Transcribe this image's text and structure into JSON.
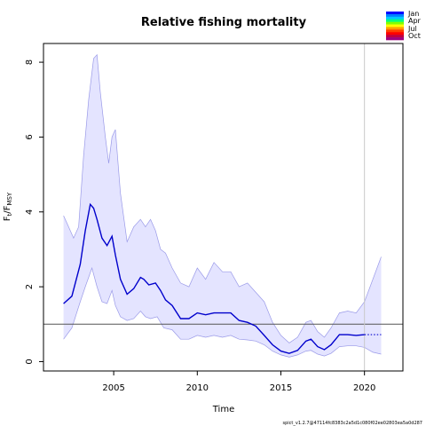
{
  "chart_data": {
    "type": "line",
    "title": "Relative fishing mortality",
    "xlabel": "Time",
    "ylabel": "F_t/F_MSY",
    "ylabel_main": "F",
    "ylabel_sub1": "t",
    "ylabel_sep": "/F",
    "ylabel_sub2": "MSY",
    "xlim": [
      2000.8,
      2022.3
    ],
    "ylim": [
      -0.25,
      8.5
    ],
    "x_ticks": [
      2005,
      2010,
      2015,
      2020
    ],
    "x_tick_labels": [
      "2005",
      "2010",
      "2015",
      "2020"
    ],
    "y_ticks": [
      0,
      2,
      4,
      6,
      8
    ],
    "y_tick_labels": [
      "0",
      "2",
      "4",
      "6",
      "8"
    ],
    "reference_line_y": 1.0,
    "vertical_line_x": 2020.0,
    "colors": {
      "estimate": "#0000cc",
      "ci_fill": "#e4e4ff",
      "ci_line": "#9a9ae8",
      "ref_line": "#555555",
      "vline": "#c8c8c8"
    },
    "series": [
      {
        "role": "estimate",
        "x": [
          2002.0,
          2002.5,
          2003.0,
          2003.3,
          2003.6,
          2003.8,
          2004.0,
          2004.3,
          2004.6,
          2004.9,
          2005.1,
          2005.4,
          2005.8,
          2006.2,
          2006.6,
          2006.8,
          2007.1,
          2007.5,
          2007.8,
          2008.1,
          2008.5,
          2009.0,
          2009.5,
          2010.0,
          2010.5,
          2011.0,
          2011.5,
          2012.0,
          2012.5,
          2013.0,
          2013.5,
          2014.0,
          2014.5,
          2015.0,
          2015.5,
          2016.0,
          2016.5,
          2016.8,
          2017.2,
          2017.6,
          2018.0,
          2018.5,
          2019.0,
          2019.5,
          2020.0
        ],
        "y": [
          1.55,
          1.75,
          2.6,
          3.5,
          4.2,
          4.1,
          3.8,
          3.3,
          3.1,
          3.35,
          2.85,
          2.2,
          1.8,
          1.95,
          2.25,
          2.2,
          2.05,
          2.1,
          1.9,
          1.65,
          1.5,
          1.15,
          1.15,
          1.3,
          1.25,
          1.3,
          1.3,
          1.3,
          1.1,
          1.05,
          0.95,
          0.7,
          0.45,
          0.28,
          0.22,
          0.3,
          0.55,
          0.6,
          0.4,
          0.32,
          0.45,
          0.72,
          0.72,
          0.7,
          0.72
        ]
      },
      {
        "role": "forecast",
        "x": [
          2020.0,
          2021.0
        ],
        "y": [
          0.72,
          0.72
        ]
      }
    ],
    "ci_upper": {
      "x": [
        2002.0,
        2002.3,
        2002.6,
        2002.9,
        2003.2,
        2003.5,
        2003.8,
        2004.0,
        2004.2,
        2004.5,
        2004.7,
        2004.9,
        2005.1,
        2005.4,
        2005.8,
        2006.2,
        2006.6,
        2006.9,
        2007.2,
        2007.5,
        2007.8,
        2008.1,
        2008.5,
        2009.0,
        2009.5,
        2010.0,
        2010.5,
        2011.0,
        2011.5,
        2012.0,
        2012.5,
        2013.0,
        2013.5,
        2014.0,
        2014.5,
        2015.0,
        2015.5,
        2016.0,
        2016.5,
        2016.8,
        2017.2,
        2017.6,
        2018.0,
        2018.5,
        2019.0,
        2019.5,
        2020.0,
        2020.5,
        2021.0
      ],
      "y": [
        3.9,
        3.6,
        3.3,
        3.6,
        5.5,
        7.0,
        8.1,
        8.2,
        7.2,
        6.0,
        5.3,
        6.0,
        6.2,
        4.5,
        3.2,
        3.6,
        3.8,
        3.6,
        3.8,
        3.5,
        3.0,
        2.9,
        2.5,
        2.1,
        2.0,
        2.5,
        2.2,
        2.65,
        2.4,
        2.4,
        2.0,
        2.1,
        1.85,
        1.6,
        1.05,
        0.7,
        0.5,
        0.65,
        1.05,
        1.1,
        0.8,
        0.65,
        0.9,
        1.3,
        1.35,
        1.3,
        1.6,
        2.2,
        2.8
      ]
    },
    "ci_lower": {
      "x": [
        2002.0,
        2002.5,
        2003.0,
        2003.3,
        2003.7,
        2004.0,
        2004.3,
        2004.6,
        2004.9,
        2005.1,
        2005.4,
        2005.8,
        2006.2,
        2006.6,
        2006.9,
        2007.2,
        2007.6,
        2008.0,
        2008.5,
        2009.0,
        2009.5,
        2010.0,
        2010.5,
        2011.0,
        2011.5,
        2012.0,
        2012.5,
        2013.0,
        2013.5,
        2014.0,
        2014.5,
        2015.0,
        2015.5,
        2016.0,
        2016.5,
        2016.8,
        2017.2,
        2017.6,
        2018.0,
        2018.5,
        2019.0,
        2019.5,
        2020.0,
        2020.5,
        2021.0
      ],
      "y": [
        0.6,
        0.9,
        1.6,
        2.0,
        2.5,
        2.0,
        1.6,
        1.55,
        1.9,
        1.5,
        1.2,
        1.1,
        1.15,
        1.35,
        1.2,
        1.15,
        1.2,
        0.9,
        0.85,
        0.6,
        0.6,
        0.7,
        0.65,
        0.7,
        0.65,
        0.7,
        0.6,
        0.58,
        0.55,
        0.45,
        0.28,
        0.18,
        0.12,
        0.18,
        0.28,
        0.3,
        0.2,
        0.15,
        0.22,
        0.4,
        0.42,
        0.42,
        0.38,
        0.25,
        0.2
      ]
    },
    "grid": false,
    "legend_position": "top-right",
    "legend_labels": [
      "Jan",
      "Apr",
      "Jul",
      "Oct"
    ],
    "legend_colors": [
      "#0000ff",
      "#0080ff",
      "#00c8ff",
      "#00ff80",
      "#80ff00",
      "#ffff00",
      "#ffa000",
      "#ff4000",
      "#ff0000",
      "#c00040",
      "#a00080"
    ],
    "footer": "spict_v1.2.7@47114fc8383c2a5d1c080f02ee02803ea5a0d287"
  }
}
